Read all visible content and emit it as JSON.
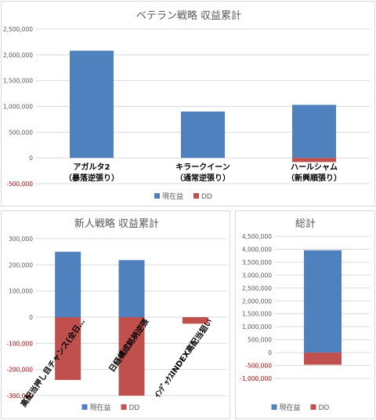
{
  "colors": {
    "current": "#4e81bd",
    "dd": "#c0504d",
    "negative_tick": "#c00000"
  },
  "legend": {
    "current": "現在益",
    "dd": "DD"
  },
  "chart_data": [
    {
      "id": "veteran",
      "type": "bar",
      "stacked": true,
      "title": "ベテラン戦略 収益累計",
      "categories": [
        [
          "アガルタ2",
          "（暴落逆張り）"
        ],
        [
          "キラークイーン",
          "（通常逆張り）"
        ],
        [
          "ハールシャム",
          "（新興順張り）"
        ]
      ],
      "series": [
        {
          "name": "現在益",
          "values": [
            2080000,
            900000,
            1030000
          ]
        },
        {
          "name": "DD",
          "values": [
            0,
            0,
            -80000
          ]
        }
      ],
      "ylim": [
        -500000,
        2500000
      ],
      "yticks": [
        2500000,
        2000000,
        1500000,
        1000000,
        500000,
        0,
        -500000
      ],
      "ytick_labels": [
        "2,500,000",
        "2,000,000",
        "1,500,000",
        "1,000,000",
        "500,000",
        "0",
        "-500,000"
      ],
      "legend_position": "bottom"
    },
    {
      "id": "rookie",
      "type": "bar",
      "stacked": true,
      "title": "新人戦略 収益累計",
      "categories": [
        "高配当押し目チャンス(全日…",
        "日経構成銘柄逆張",
        "ｲﾝﾃﾞｯｸｽINDEX高配当狙い"
      ],
      "series": [
        {
          "name": "現在益",
          "values": [
            250000,
            218000,
            0
          ]
        },
        {
          "name": "DD",
          "values": [
            -240000,
            -300000,
            -25000
          ]
        }
      ],
      "ylim": [
        -300000,
        300000
      ],
      "yticks": [
        300000,
        200000,
        100000,
        0,
        -100000,
        -200000,
        -300000
      ],
      "ytick_labels": [
        "300,000",
        "200,000",
        "100,000",
        "0",
        "-100,000",
        "-200,000",
        "-300,000"
      ],
      "legend_position": "bottom"
    },
    {
      "id": "total",
      "type": "bar",
      "stacked": true,
      "title": "総計",
      "categories": [
        ""
      ],
      "series": [
        {
          "name": "現在益",
          "values": [
            3960000
          ]
        },
        {
          "name": "DD",
          "values": [
            -470000
          ]
        }
      ],
      "ylim": [
        -1000000,
        4500000
      ],
      "yticks": [
        4500000,
        4000000,
        3500000,
        3000000,
        2500000,
        2000000,
        1500000,
        1000000,
        500000,
        0,
        -500000,
        -1000000
      ],
      "ytick_labels": [
        "4,500,000",
        "4,000,000",
        "3,500,000",
        "3,000,000",
        "2,500,000",
        "2,000,000",
        "1,500,000",
        "1,000,000",
        "500,000",
        "0",
        "-500,000",
        "-1,000,000"
      ],
      "legend_position": "bottom"
    }
  ]
}
